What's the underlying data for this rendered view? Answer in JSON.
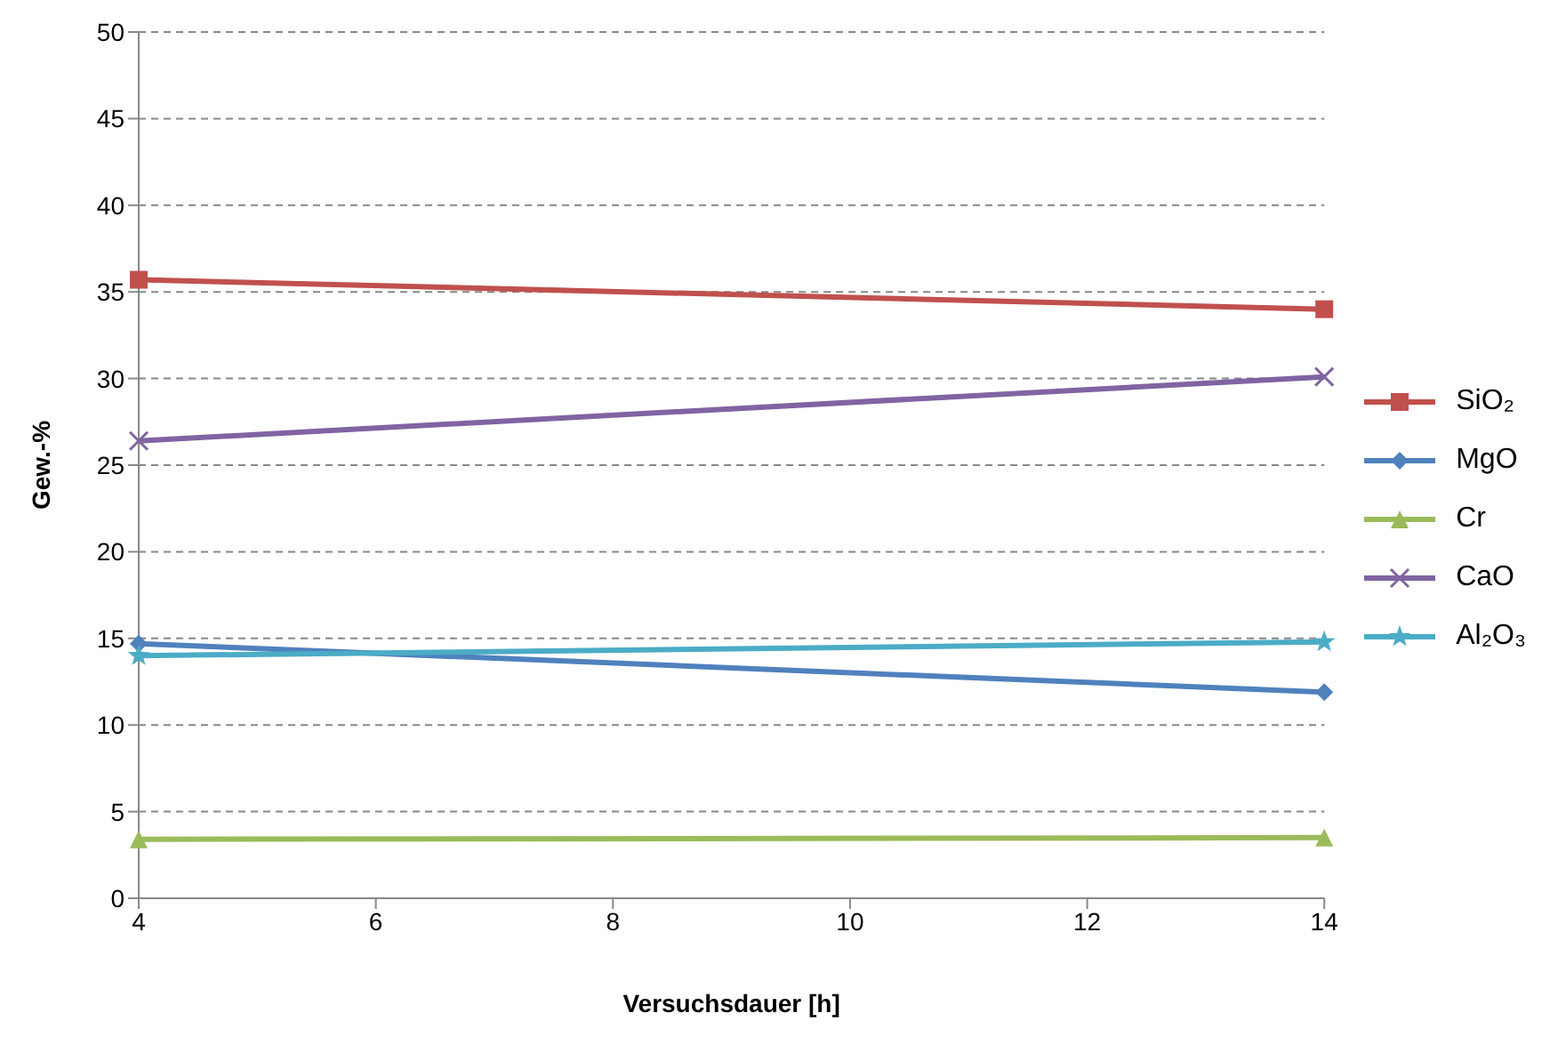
{
  "chart_data": {
    "type": "line",
    "xlabel": "Versuchsdauer [h]",
    "ylabel": "Gew.-%",
    "x": [
      4,
      14
    ],
    "xlim": [
      4,
      14
    ],
    "xticks": [
      4,
      6,
      8,
      10,
      12,
      14
    ],
    "ylim": [
      0,
      50
    ],
    "yticks": [
      0,
      5,
      10,
      15,
      20,
      25,
      30,
      35,
      40,
      45,
      50
    ],
    "grid": "y",
    "legend": "right",
    "series": [
      {
        "name": "SiO₂",
        "color": "#c0504d",
        "marker": "square",
        "values": [
          35.7,
          34.0
        ]
      },
      {
        "name": "MgO",
        "color": "#4f81bd",
        "marker": "diamond",
        "values": [
          14.7,
          11.9
        ]
      },
      {
        "name": "Cr",
        "color": "#9bbb59",
        "marker": "triangle",
        "values": [
          3.4,
          3.5
        ]
      },
      {
        "name": "CaO",
        "color": "#8064a2",
        "marker": "cross",
        "values": [
          26.4,
          30.1
        ]
      },
      {
        "name": "Al₂O₃",
        "color": "#4bacc6",
        "marker": "star",
        "values": [
          14.0,
          14.8
        ]
      }
    ]
  }
}
